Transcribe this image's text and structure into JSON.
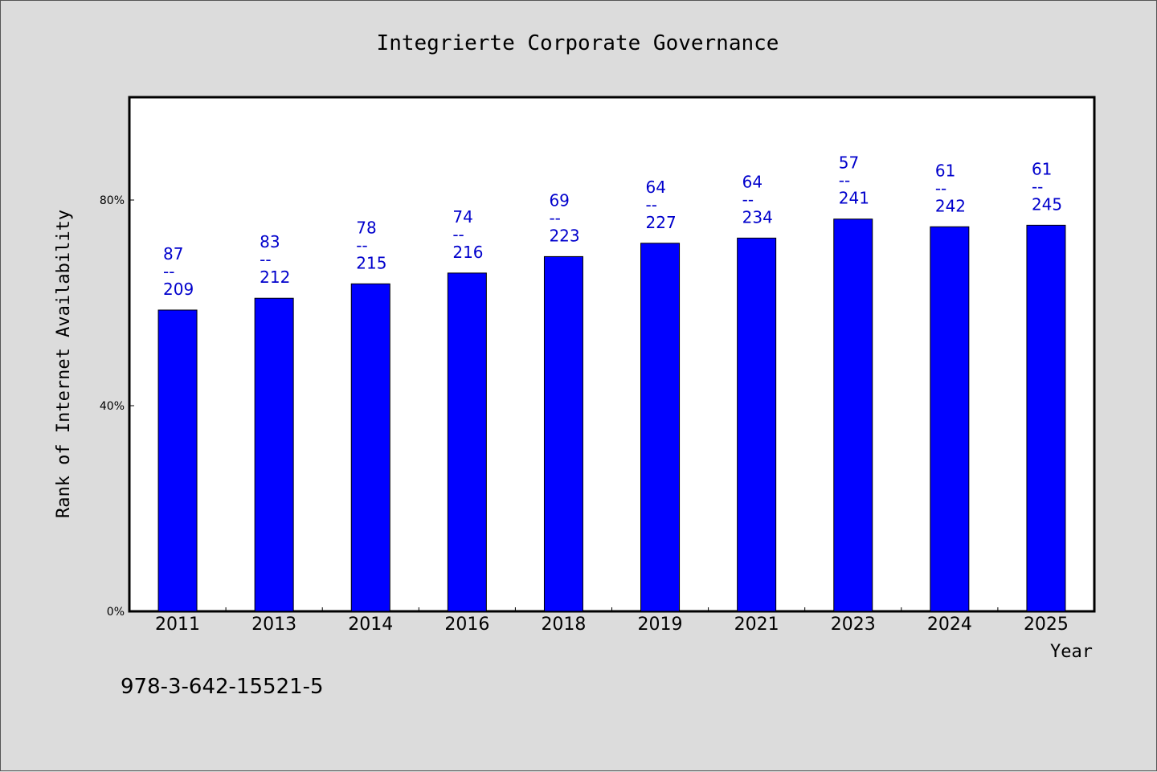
{
  "chart_data": {
    "type": "bar",
    "title": "Integrierte Corporate Governance",
    "xlabel": "Year",
    "ylabel": "Rank of Internet Availability",
    "categories": [
      "2011",
      "2013",
      "2014",
      "2016",
      "2018",
      "2019",
      "2021",
      "2023",
      "2024",
      "2025"
    ],
    "values": [
      58.6,
      60.9,
      63.7,
      65.8,
      69.0,
      71.6,
      72.6,
      76.3,
      74.8,
      75.1
    ],
    "data_labels": [
      [
        "87",
        "--",
        "209"
      ],
      [
        "83",
        "--",
        "212"
      ],
      [
        "78",
        "--",
        "215"
      ],
      [
        "74",
        "--",
        "216"
      ],
      [
        "69",
        "--",
        "223"
      ],
      [
        "64",
        "--",
        "227"
      ],
      [
        "64",
        "--",
        "234"
      ],
      [
        "57",
        "--",
        "241"
      ],
      [
        "61",
        "--",
        "242"
      ],
      [
        "61",
        "--",
        "245"
      ]
    ],
    "ylim": [
      0,
      100
    ],
    "yticks": [
      0,
      40,
      80
    ],
    "ytick_labels": [
      "0%",
      "40%",
      "80%"
    ],
    "bar_color": "#0000ff",
    "label_color": "#0000cc",
    "grid": false,
    "legend": "none"
  },
  "footer": {
    "isbn": "978-3-642-15521-5"
  }
}
